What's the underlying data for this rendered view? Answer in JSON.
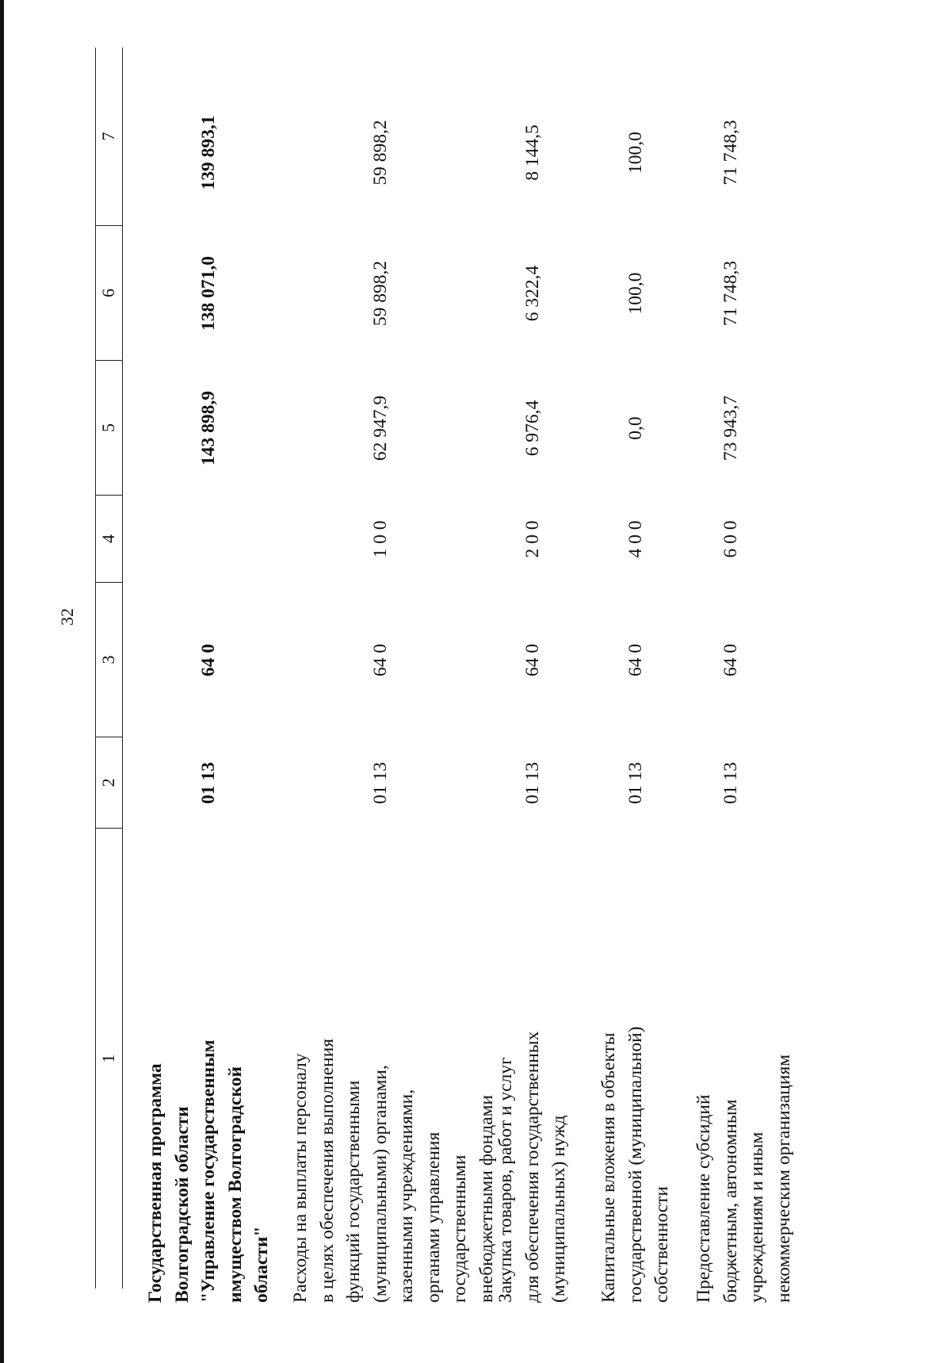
{
  "page_number": "32",
  "header": [
    "1",
    "2",
    "3",
    "4",
    "5",
    "6",
    "7"
  ],
  "rows": [
    {
      "bold": true,
      "lines": [
        "Государственная программа",
        "Волгоградской области",
        "\"Управление государственным",
        "имуществом Волгоградской",
        "области\""
      ],
      "values": [
        "01 13",
        "64 0",
        "",
        "143 898,9",
        "138 071,0",
        "139 893,1"
      ]
    },
    {
      "bold": false,
      "lines": [
        "Расходы на выплаты персоналу",
        "в целях обеспечения выполнения",
        "функций государственными",
        "(муниципальными) органами,",
        "казенными учреждениями,",
        "органами управления",
        "государственными",
        "внебюджетными фондами"
      ],
      "values": [
        "01 13",
        "64 0",
        "1 0 0",
        "62 947,9",
        "59 898,2",
        "59 898,2"
      ]
    },
    {
      "bold": false,
      "lines": [
        "Закупка товаров, работ и услуг",
        "для обеспечения государственных",
        "(муниципальных) нужд"
      ],
      "values": [
        "01 13",
        "64 0",
        "2 0 0",
        "6 976,4",
        "6 322,4",
        "8 144,5"
      ]
    },
    {
      "bold": false,
      "lines": [
        "Капитальные вложения в объекты",
        "государственной (муниципальной)",
        "собственности"
      ],
      "values": [
        "01 13",
        "64 0",
        "4 0 0",
        "0,0",
        "100,0",
        "100,0"
      ]
    },
    {
      "bold": false,
      "lines": [
        "Предоставление субсидий",
        "бюджетным, автономным",
        "учреждениям и иным",
        "некоммерческим организациям"
      ],
      "values": [
        "01 13",
        "64 0",
        "6 0 0",
        "73 943,7",
        "71 748,3",
        "71 748,3"
      ]
    }
  ]
}
